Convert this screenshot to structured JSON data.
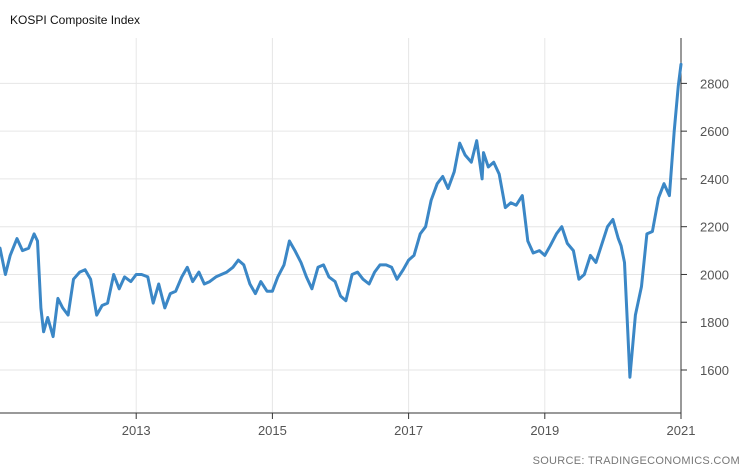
{
  "chart_data": {
    "type": "line",
    "title": "KOSPI Composite Index",
    "source": "SOURCE: TRADINGECONOMICS.COM",
    "xlabel": "",
    "ylabel": "",
    "xlim": [
      2011.0,
      2021.0
    ],
    "ylim": [
      1420,
      2990
    ],
    "grid": true,
    "y_axis_side": "right",
    "x_ticks": [
      2013,
      2015,
      2017,
      2019,
      2021
    ],
    "x_tick_labels": [
      "2013",
      "2015",
      "2017",
      "2019",
      "2021"
    ],
    "y_ticks": [
      1600,
      1800,
      2000,
      2200,
      2400,
      2600,
      2800
    ],
    "y_tick_labels": [
      "1600",
      "1800",
      "2000",
      "2200",
      "2400",
      "2600",
      "2800"
    ],
    "series": [
      {
        "color": "#3b87c6",
        "x": [
          2011.0,
          2011.08,
          2011.15,
          2011.25,
          2011.33,
          2011.42,
          2011.5,
          2011.55,
          2011.6,
          2011.64,
          2011.7,
          2011.78,
          2011.85,
          2011.92,
          2012.0,
          2012.08,
          2012.17,
          2012.25,
          2012.33,
          2012.42,
          2012.5,
          2012.58,
          2012.67,
          2012.75,
          2012.83,
          2012.92,
          2013.0,
          2013.08,
          2013.17,
          2013.25,
          2013.33,
          2013.42,
          2013.5,
          2013.58,
          2013.67,
          2013.75,
          2013.83,
          2013.92,
          2014.0,
          2014.08,
          2014.17,
          2014.25,
          2014.33,
          2014.42,
          2014.5,
          2014.58,
          2014.67,
          2014.75,
          2014.83,
          2014.92,
          2015.0,
          2015.08,
          2015.17,
          2015.25,
          2015.33,
          2015.42,
          2015.5,
          2015.58,
          2015.67,
          2015.75,
          2015.83,
          2015.92,
          2016.0,
          2016.08,
          2016.17,
          2016.25,
          2016.33,
          2016.42,
          2016.5,
          2016.58,
          2016.67,
          2016.75,
          2016.83,
          2016.92,
          2017.0,
          2017.08,
          2017.17,
          2017.25,
          2017.33,
          2017.42,
          2017.5,
          2017.58,
          2017.67,
          2017.75,
          2017.83,
          2017.92,
          2018.0,
          2018.08,
          2018.1,
          2018.17,
          2018.25,
          2018.33,
          2018.42,
          2018.5,
          2018.58,
          2018.67,
          2018.75,
          2018.83,
          2018.92,
          2019.0,
          2019.08,
          2019.17,
          2019.25,
          2019.33,
          2019.42,
          2019.5,
          2019.58,
          2019.67,
          2019.75,
          2019.83,
          2019.92,
          2020.0,
          2020.08,
          2020.12,
          2020.17,
          2020.22,
          2020.25,
          2020.33,
          2020.42,
          2020.5,
          2020.58,
          2020.67,
          2020.75,
          2020.83,
          2020.9,
          2020.96,
          2021.0
        ],
        "values": [
          2110,
          2000,
          2080,
          2150,
          2100,
          2110,
          2170,
          2140,
          1860,
          1760,
          1820,
          1740,
          1900,
          1860,
          1830,
          1980,
          2010,
          2020,
          1980,
          1830,
          1870,
          1880,
          2000,
          1940,
          1990,
          1970,
          2000,
          2000,
          1990,
          1880,
          1960,
          1860,
          1920,
          1930,
          1990,
          2030,
          1970,
          2010,
          1960,
          1970,
          1990,
          2000,
          2010,
          2030,
          2060,
          2040,
          1960,
          1920,
          1970,
          1930,
          1930,
          1990,
          2040,
          2140,
          2100,
          2050,
          1990,
          1940,
          2030,
          2040,
          1990,
          1970,
          1910,
          1890,
          2000,
          2010,
          1980,
          1960,
          2010,
          2040,
          2040,
          2030,
          1980,
          2020,
          2060,
          2080,
          2170,
          2200,
          2310,
          2380,
          2410,
          2360,
          2430,
          2550,
          2500,
          2470,
          2560,
          2400,
          2510,
          2450,
          2470,
          2420,
          2280,
          2300,
          2290,
          2330,
          2140,
          2090,
          2100,
          2080,
          2120,
          2170,
          2200,
          2130,
          2100,
          1980,
          2000,
          2080,
          2050,
          2120,
          2200,
          2230,
          2150,
          2120,
          2050,
          1750,
          1570,
          1830,
          1950,
          2170,
          2180,
          2320,
          2380,
          2330,
          2600,
          2790,
          2880
        ]
      }
    ]
  }
}
